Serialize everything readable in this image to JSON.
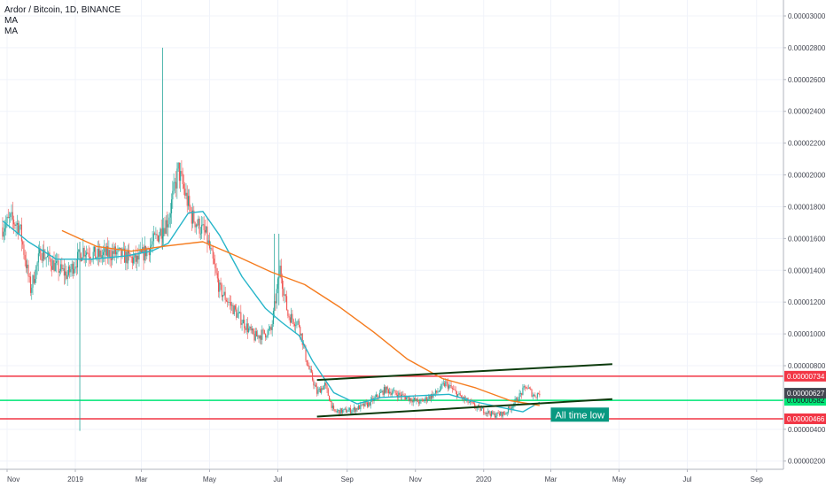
{
  "header": {
    "title": "Ardor / Bitcoin, 1D, BINANCE",
    "ma1": "MA",
    "ma2": "MA"
  },
  "colors": {
    "up": "#26a69a",
    "down": "#ef5350",
    "ma_fast": "#26b5c9",
    "ma_slow": "#f57c1f",
    "resistance": "#f23645",
    "support": "#00e676",
    "channel": "#0d3b0d",
    "note_bg": "#089981",
    "grid": "#f0f3fa"
  },
  "chart_data": {
    "type": "candlestick",
    "symbol": "Ardor / Bitcoin",
    "interval": "1D",
    "exchange": "BINANCE",
    "x_tick_labels": [
      "Nov",
      "2019",
      "Mar",
      "May",
      "Jul",
      "Sep",
      "Nov",
      "2020",
      "Mar",
      "May",
      "Jul",
      "Sep"
    ],
    "y_tick_labels": [
      "0.00003000",
      "0.00002800",
      "0.00002600",
      "0.00002400",
      "0.00002200",
      "0.00002000",
      "0.00001800",
      "0.00001600",
      "0.00001400",
      "0.00001200",
      "0.00001000",
      "0.00000800",
      "0.00000400",
      "0.00000200"
    ],
    "ylim": [
      1e-07,
      3.1e-06
    ],
    "price_key_points": [
      [
        "2018-10-28",
        1.67e-05
      ],
      [
        "2018-11-04",
        1.72e-05
      ],
      [
        "2018-11-12",
        1.68e-05
      ],
      [
        "2018-11-22",
        1.28e-05
      ],
      [
        "2018-12-01",
        1.52e-05
      ],
      [
        "2018-12-15",
        1.42e-05
      ],
      [
        "2018-12-25",
        1.37e-05
      ],
      [
        "2019-01-08",
        1.53e-05
      ],
      [
        "2019-01-20",
        1.49e-05
      ],
      [
        "2019-02-05",
        1.51e-05
      ],
      [
        "2019-02-25",
        1.46e-05
      ],
      [
        "2019-03-10",
        1.56e-05
      ],
      [
        "2019-03-25",
        1.72e-05
      ],
      [
        "2019-04-03",
        2.03e-05
      ],
      [
        "2019-04-15",
        1.74e-05
      ],
      [
        "2019-04-28",
        1.62e-05
      ],
      [
        "2019-05-10",
        1.28e-05
      ],
      [
        "2019-05-25",
        1.13e-05
      ],
      [
        "2019-06-10",
        9.8e-06
      ],
      [
        "2019-06-25",
        1.02e-05
      ],
      [
        "2019-07-03",
        1.41e-05
      ],
      [
        "2019-07-10",
        1.12e-05
      ],
      [
        "2019-07-20",
        1.06e-05
      ],
      [
        "2019-07-27",
        8.2e-06
      ],
      [
        "2019-08-05",
        6.3e-06
      ],
      [
        "2019-08-12",
        6.8e-06
      ],
      [
        "2019-08-20",
        5.1e-06
      ],
      [
        "2019-09-05",
        5.2e-06
      ],
      [
        "2019-09-20",
        5.6e-06
      ],
      [
        "2019-10-05",
        6.5e-06
      ],
      [
        "2019-10-20",
        6.1e-06
      ],
      [
        "2019-11-05",
        5.7e-06
      ],
      [
        "2019-11-20",
        6.3e-06
      ],
      [
        "2019-11-28",
        6.9e-06
      ],
      [
        "2019-12-10",
        6.1e-06
      ],
      [
        "2019-12-25",
        5.4e-06
      ],
      [
        "2020-01-10",
        4.9e-06
      ],
      [
        "2020-01-20",
        5e-06
      ],
      [
        "2020-01-30",
        5.8e-06
      ],
      [
        "2020-02-08",
        6.7e-06
      ],
      [
        "2020-02-15",
        6.1e-06
      ],
      [
        "2020-02-20",
        6.3e-06
      ]
    ],
    "ma_fast_points": [
      [
        "2018-10-28",
        1.71e-05
      ],
      [
        "2018-11-20",
        1.58e-05
      ],
      [
        "2018-12-15",
        1.47e-05
      ],
      [
        "2019-01-15",
        1.47e-05
      ],
      [
        "2019-02-15",
        1.49e-05
      ],
      [
        "2019-03-10",
        1.52e-05
      ],
      [
        "2019-03-25",
        1.57e-05
      ],
      [
        "2019-04-12",
        1.76e-05
      ],
      [
        "2019-04-25",
        1.77e-05
      ],
      [
        "2019-05-10",
        1.62e-05
      ],
      [
        "2019-05-30",
        1.36e-05
      ],
      [
        "2019-06-20",
        1.16e-05
      ],
      [
        "2019-07-05",
        1.07e-05
      ],
      [
        "2019-07-20",
        9.9e-06
      ],
      [
        "2019-08-01",
        8.3e-06
      ],
      [
        "2019-08-20",
        6.3e-06
      ],
      [
        "2019-09-10",
        5.6e-06
      ],
      [
        "2019-10-01",
        6e-06
      ],
      [
        "2019-11-01",
        6.1e-06
      ],
      [
        "2019-12-01",
        6.2e-06
      ],
      [
        "2019-12-20",
        5.8e-06
      ],
      [
        "2020-01-15",
        5.4e-06
      ],
      [
        "2020-02-05",
        5.1e-06
      ],
      [
        "2020-02-20",
        5.7e-06
      ]
    ],
    "ma_slow_points": [
      [
        "2018-12-20",
        1.65e-05
      ],
      [
        "2019-01-20",
        1.55e-05
      ],
      [
        "2019-02-20",
        1.52e-05
      ],
      [
        "2019-03-20",
        1.55e-05
      ],
      [
        "2019-04-25",
        1.58e-05
      ],
      [
        "2019-05-25",
        1.49e-05
      ],
      [
        "2019-06-25",
        1.39e-05
      ],
      [
        "2019-07-25",
        1.31e-05
      ],
      [
        "2019-08-25",
        1.17e-05
      ],
      [
        "2019-09-25",
        1.01e-05
      ],
      [
        "2019-10-25",
        8.4e-06
      ],
      [
        "2019-11-25",
        7.2e-06
      ],
      [
        "2019-12-25",
        6.6e-06
      ],
      [
        "2020-01-25",
        5.8e-06
      ],
      [
        "2020-02-20",
        5.5e-06
      ]
    ],
    "horizontal_levels": [
      {
        "price": 7.34e-06,
        "label": "0.00000734",
        "role": "resistance"
      },
      {
        "price": 5.82e-06,
        "label": "0.00000582",
        "role": "support"
      },
      {
        "price": 4.66e-06,
        "label": "0.00000466",
        "role": "resistance"
      }
    ],
    "price_badges": [
      {
        "price": 6.27e-06,
        "label": "0.00000627"
      }
    ],
    "channel_lines": [
      {
        "from": [
          "2019-08-05",
          7.1e-06
        ],
        "to": [
          "2020-04-25",
          8.1e-06
        ]
      },
      {
        "from": [
          "2019-08-05",
          4.8e-06
        ],
        "to": [
          "2020-04-25",
          5.9e-06
        ]
      }
    ],
    "annotations": [
      {
        "text": "All time low",
        "date": "2020-03-01",
        "price": 5.2e-06
      }
    ]
  }
}
